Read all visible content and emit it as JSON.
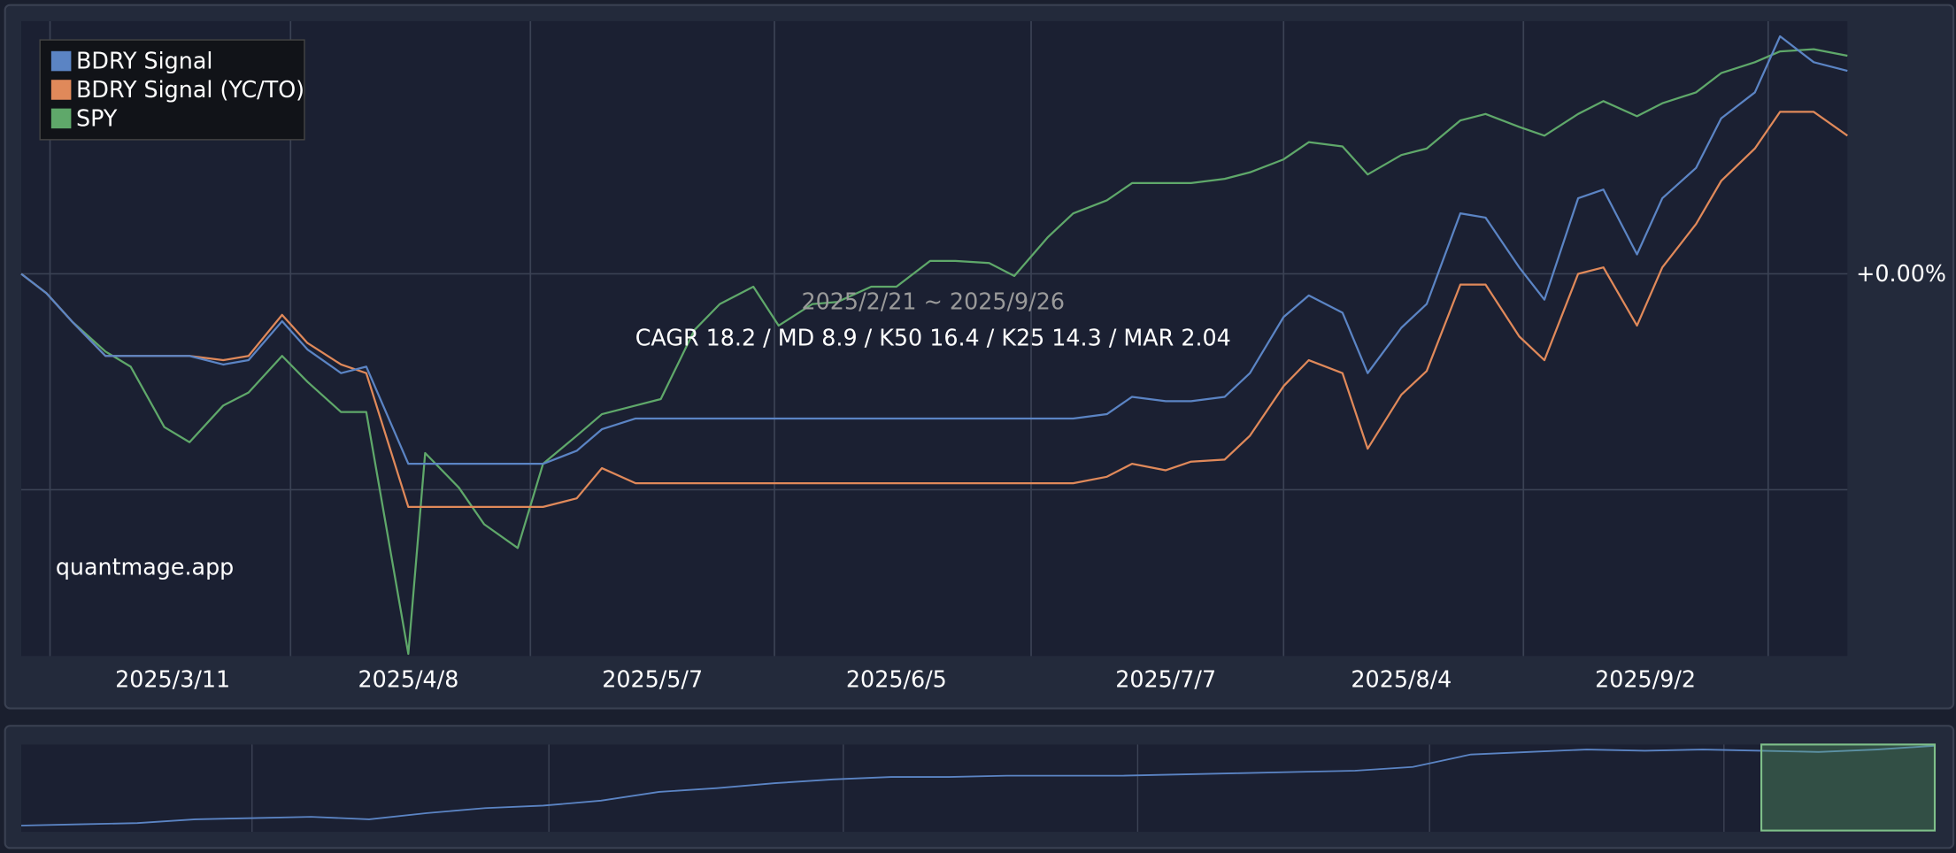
{
  "chart_data": {
    "type": "line",
    "x": [
      "2025/2/21",
      "2025/2/24",
      "2025/2/27",
      "2025/3/3",
      "2025/3/6",
      "2025/3/10",
      "2025/3/13",
      "2025/3/17",
      "2025/3/20",
      "2025/3/24",
      "2025/3/27",
      "2025/3/31",
      "2025/4/3",
      "2025/4/8",
      "2025/4/10",
      "2025/4/14",
      "2025/4/17",
      "2025/4/21",
      "2025/4/24",
      "2025/4/28",
      "2025/5/1",
      "2025/5/5",
      "2025/5/8",
      "2025/5/12",
      "2025/5/15",
      "2025/5/19",
      "2025/5/22",
      "2025/5/26",
      "2025/5/29",
      "2025/6/2",
      "2025/6/5",
      "2025/6/9",
      "2025/6/12",
      "2025/6/16",
      "2025/6/19",
      "2025/6/23",
      "2025/6/26",
      "2025/6/30",
      "2025/7/3",
      "2025/7/7",
      "2025/7/10",
      "2025/7/14",
      "2025/7/17",
      "2025/7/21",
      "2025/7/24",
      "2025/7/28",
      "2025/7/31",
      "2025/8/4",
      "2025/8/7",
      "2025/8/11",
      "2025/8/14",
      "2025/8/18",
      "2025/8/21",
      "2025/8/25",
      "2025/8/28",
      "2025/9/1",
      "2025/9/4",
      "2025/9/8",
      "2025/9/11",
      "2025/9/15",
      "2025/9/18",
      "2025/9/22",
      "2025/9/26"
    ],
    "series": [
      {
        "name": "BDRY Signal",
        "color": "#5b84c4",
        "values": [
          0,
          -0.9,
          -2.2,
          -3.8,
          -3.8,
          -3.8,
          -3.8,
          -4.2,
          -4.0,
          -2.2,
          -3.5,
          -4.6,
          -4.3,
          -8.8,
          -8.8,
          -8.8,
          -8.8,
          -8.8,
          -8.8,
          -8.2,
          -7.2,
          -6.7,
          -6.7,
          -6.7,
          -6.7,
          -6.7,
          -6.7,
          -6.7,
          -6.7,
          -6.7,
          -6.7,
          -6.7,
          -6.7,
          -6.7,
          -6.7,
          -6.7,
          -6.7,
          -6.5,
          -5.7,
          -5.9,
          -5.9,
          -5.7,
          -4.6,
          -2.0,
          -1.0,
          -1.8,
          -4.6,
          -2.5,
          -1.4,
          2.8,
          2.6,
          0.3,
          -1.2,
          3.5,
          3.9,
          0.9,
          3.5,
          4.9,
          7.2,
          8.4,
          11.0,
          9.8,
          9.4
        ]
      },
      {
        "name": "BDRY Signal (YC/TO)",
        "color": "#e0895a",
        "values": [
          0,
          -0.9,
          -2.2,
          -3.8,
          -3.8,
          -3.8,
          -3.8,
          -4.0,
          -3.8,
          -1.9,
          -3.2,
          -4.2,
          -4.6,
          -10.8,
          -10.8,
          -10.8,
          -10.8,
          -10.8,
          -10.8,
          -10.4,
          -9.0,
          -9.7,
          -9.7,
          -9.7,
          -9.7,
          -9.7,
          -9.7,
          -9.7,
          -9.7,
          -9.7,
          -9.7,
          -9.7,
          -9.7,
          -9.7,
          -9.7,
          -9.7,
          -9.7,
          -9.4,
          -8.8,
          -9.1,
          -8.7,
          -8.6,
          -7.5,
          -5.2,
          -4.0,
          -4.6,
          -8.1,
          -5.6,
          -4.5,
          -0.5,
          -0.5,
          -2.9,
          -4.0,
          0,
          0.3,
          -2.4,
          0.3,
          2.3,
          4.3,
          5.8,
          7.5,
          7.5,
          6.4
        ]
      },
      {
        "name": "SPY",
        "color": "#5fa86a",
        "values": [
          0,
          -0.9,
          -2.2,
          -3.6,
          -4.3,
          -7.1,
          -7.8,
          -6.1,
          -5.5,
          -3.8,
          -5.0,
          -6.4,
          -6.4,
          -17.6,
          -8.3,
          -9.9,
          -11.6,
          -12.7,
          -8.8,
          -7.5,
          -6.5,
          -6.1,
          -5.8,
          -2.6,
          -1.4,
          -0.6,
          -2.4,
          -1.4,
          -1.3,
          -0.6,
          -0.6,
          0.6,
          0.6,
          0.5,
          -0.1,
          1.7,
          2.8,
          3.4,
          4.2,
          4.2,
          4.2,
          4.4,
          4.7,
          5.3,
          6.1,
          5.9,
          4.6,
          5.5,
          5.8,
          7.1,
          7.4,
          6.8,
          6.4,
          7.4,
          8.0,
          7.3,
          7.9,
          8.4,
          9.3,
          9.8,
          10.3,
          10.4,
          10.1
        ]
      }
    ],
    "xlim": [
      "2025/2/21",
      "2025/9/26"
    ],
    "xticks": [
      "2025/3/11",
      "2025/4/8",
      "2025/5/7",
      "2025/6/5",
      "2025/7/7",
      "2025/8/4",
      "2025/9/2"
    ],
    "ylim": [
      -17.7,
      11.7
    ],
    "yticks": [
      {
        "value": 0,
        "label": "+0.00%"
      },
      {
        "value": -10,
        "label": null
      }
    ],
    "grid": true,
    "legend": "top-left",
    "annotations": [
      "2025/2/21 ~ 2025/9/26",
      "CAGR 18.2 / MD 8.9 / K50 16.4 / K25 14.3 / MAR 2.04"
    ],
    "watermark": "quantmage.app",
    "navigator": {
      "color": "#5b84c4",
      "ylim": [
        0,
        73
      ],
      "values": [
        8,
        9,
        10,
        13,
        14,
        15,
        13,
        18,
        22,
        24,
        28,
        35,
        38,
        42,
        45,
        47,
        47,
        48,
        48,
        48,
        49,
        50,
        51,
        52,
        55,
        65,
        67,
        69,
        68,
        69,
        68,
        67,
        69,
        72
      ]
    }
  }
}
